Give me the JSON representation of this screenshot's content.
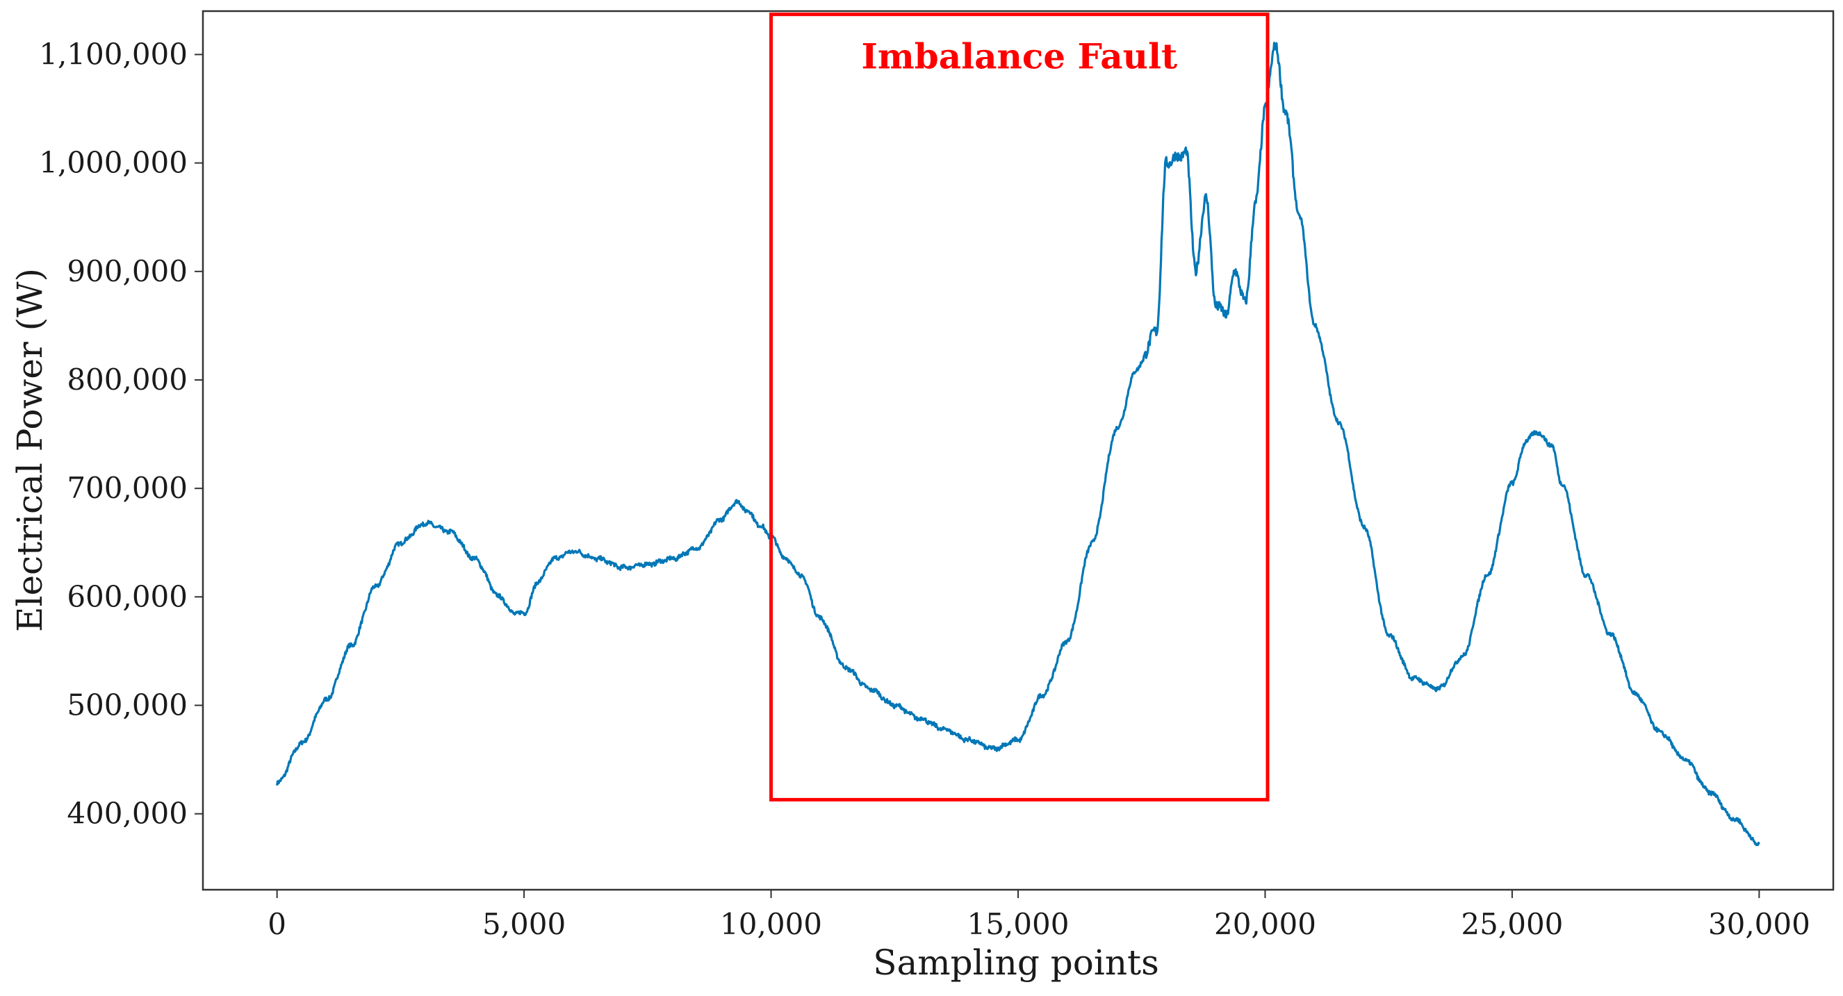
{
  "chart_data": {
    "type": "line",
    "title": "",
    "xlabel": "Sampling points",
    "ylabel": "Electrical Power (W)",
    "xlim": [
      -1500,
      31500
    ],
    "ylim": [
      330000,
      1140000
    ],
    "grid": false,
    "legend": "none",
    "colors": {
      "line": "#0077b6",
      "annotation": "#ff0000",
      "frame": "#333333"
    },
    "x_ticks": [
      {
        "value": 0,
        "label": "0"
      },
      {
        "value": 5000,
        "label": "5,000"
      },
      {
        "value": 10000,
        "label": "10,000"
      },
      {
        "value": 15000,
        "label": "15,000"
      },
      {
        "value": 20000,
        "label": "20,000"
      },
      {
        "value": 25000,
        "label": "25,000"
      },
      {
        "value": 30000,
        "label": "30,000"
      }
    ],
    "y_ticks": [
      {
        "value": 400000,
        "label": "400,000"
      },
      {
        "value": 500000,
        "label": "500,000"
      },
      {
        "value": 600000,
        "label": "600,000"
      },
      {
        "value": 700000,
        "label": "700,000"
      },
      {
        "value": 800000,
        "label": "800,000"
      },
      {
        "value": 900000,
        "label": "900,000"
      },
      {
        "value": 1000000,
        "label": "1,000,000"
      },
      {
        "value": 1100000,
        "label": "1,100,000"
      }
    ],
    "series": [
      {
        "name": "Electrical Power",
        "x": [
          0,
          500,
          1000,
          1500,
          2000,
          2500,
          3000,
          3500,
          4000,
          4500,
          4800,
          5000,
          5300,
          5600,
          6000,
          6500,
          7000,
          7500,
          8000,
          8500,
          9000,
          9300,
          9500,
          9800,
          10000,
          10300,
          10600,
          11000,
          11500,
          12000,
          12500,
          13000,
          13500,
          14000,
          14500,
          15000,
          15500,
          16000,
          16500,
          17000,
          17400,
          17800,
          18000,
          18200,
          18400,
          18600,
          18800,
          19000,
          19200,
          19400,
          19600,
          19800,
          20000,
          20200,
          20400,
          20700,
          21000,
          21500,
          22000,
          22500,
          23000,
          23500,
          24000,
          24500,
          25000,
          25300,
          25500,
          25800,
          26000,
          26500,
          27000,
          27500,
          28000,
          28500,
          29000,
          29500,
          30000
        ],
        "values": [
          428000,
          465000,
          505000,
          555000,
          610000,
          650000,
          668000,
          660000,
          635000,
          600000,
          585000,
          585000,
          615000,
          635000,
          642000,
          635000,
          627000,
          630000,
          635000,
          645000,
          672000,
          688000,
          680000,
          665000,
          655000,
          635000,
          620000,
          580000,
          535000,
          515000,
          500000,
          488000,
          478000,
          468000,
          460000,
          468000,
          510000,
          560000,
          650000,
          755000,
          810000,
          845000,
          1000000,
          1005000,
          1010000,
          900000,
          970000,
          870000,
          860000,
          900000,
          870000,
          960000,
          1050000,
          1110000,
          1050000,
          950000,
          850000,
          760000,
          665000,
          565000,
          525000,
          515000,
          545000,
          620000,
          705000,
          745000,
          752000,
          740000,
          705000,
          620000,
          565000,
          510000,
          475000,
          450000,
          420000,
          395000,
          372000
        ]
      }
    ],
    "annotations": [
      {
        "label": "Imbalance Fault",
        "x_range": [
          10000,
          20050
        ],
        "y_range": [
          413000,
          1137000
        ]
      }
    ]
  }
}
